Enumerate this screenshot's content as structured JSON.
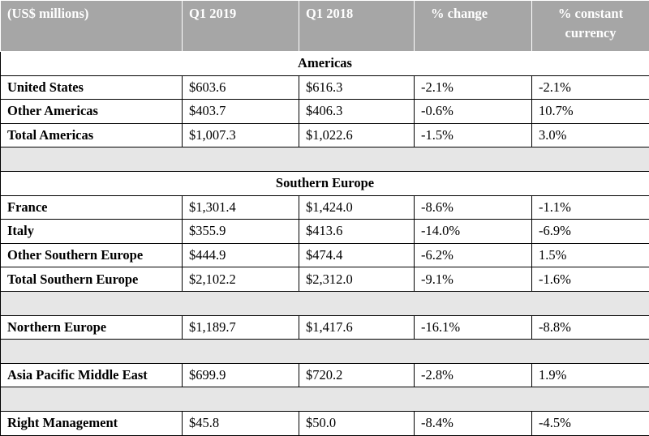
{
  "header": {
    "label": "(US$ millions)",
    "col1": "Q1 2019",
    "col2": "Q1 2018",
    "col3": "% change",
    "col4": "% constant currency"
  },
  "sections": {
    "americas": {
      "title": "Americas",
      "rows": [
        {
          "label": "United States",
          "q1_2019": "$603.6",
          "q1_2018": "$616.3",
          "change": "-2.1%",
          "constant": "-2.1%"
        },
        {
          "label": "Other Americas",
          "q1_2019": "$403.7",
          "q1_2018": "$406.3",
          "change": "-0.6%",
          "constant": "10.7%"
        },
        {
          "label": "Total Americas",
          "q1_2019": "$1,007.3",
          "q1_2018": "$1,022.6",
          "change": "-1.5%",
          "constant": "3.0%"
        }
      ]
    },
    "southern_europe": {
      "title": "Southern Europe",
      "rows": [
        {
          "label": "France",
          "q1_2019": "$1,301.4",
          "q1_2018": "$1,424.0",
          "change": "-8.6%",
          "constant": "-1.1%"
        },
        {
          "label": "Italy",
          "q1_2019": "$355.9",
          "q1_2018": "$413.6",
          "change": "-14.0%",
          "constant": "-6.9%"
        },
        {
          "label": "Other Southern Europe",
          "q1_2019": "$444.9",
          "q1_2018": "$474.4",
          "change": "-6.2%",
          "constant": "1.5%"
        },
        {
          "label": "Total Southern Europe",
          "q1_2019": "$2,102.2",
          "q1_2018": "$2,312.0",
          "change": "-9.1%",
          "constant": "-1.6%"
        }
      ]
    }
  },
  "northern_europe": {
    "label": "Northern Europe",
    "q1_2019": "$1,189.7",
    "q1_2018": "$1,417.6",
    "change": "-16.1%",
    "constant": "-8.8%"
  },
  "apme": {
    "label": "Asia Pacific Middle East",
    "q1_2019": "$699.9",
    "q1_2018": "$720.2",
    "change": "-2.8%",
    "constant": "1.9%"
  },
  "right_management": {
    "label": "Right Management",
    "q1_2019": "$45.8",
    "q1_2018": "$50.0",
    "change": "-8.4%",
    "constant": "-4.5%"
  }
}
